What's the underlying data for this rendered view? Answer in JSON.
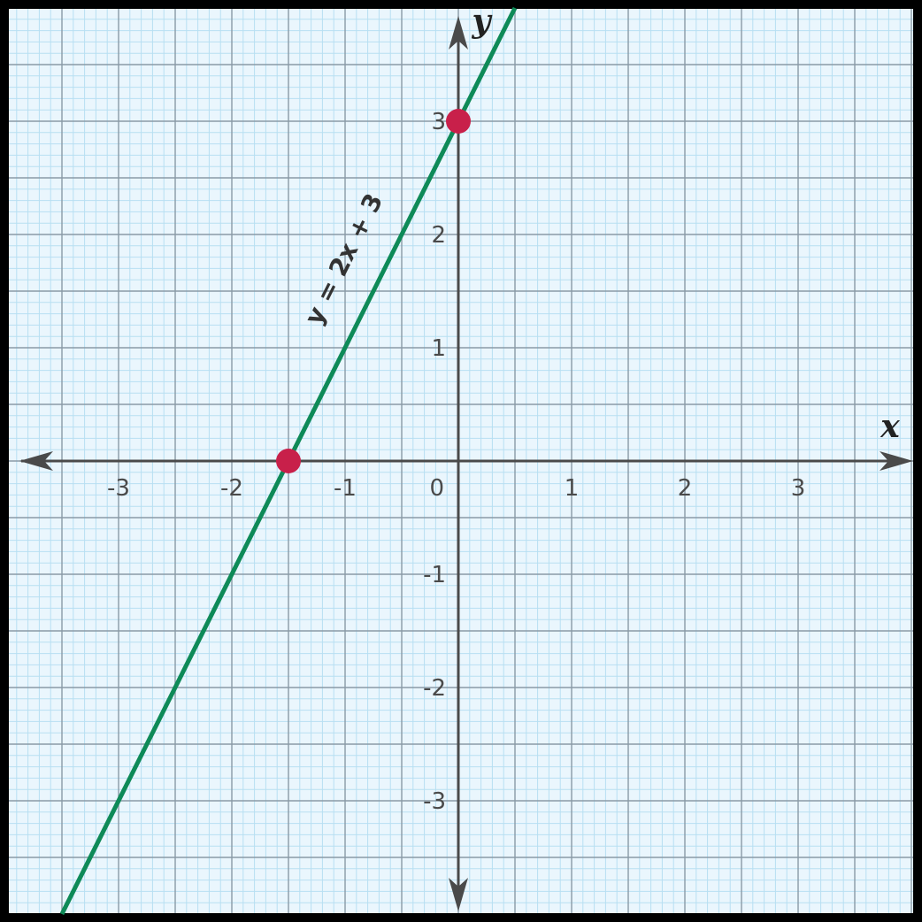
{
  "chart_data": {
    "type": "line",
    "title": "",
    "xlabel": "x",
    "ylabel": "y",
    "xlim": [
      -4,
      4
    ],
    "ylim": [
      -4,
      4
    ],
    "grid": true,
    "x_ticks": [
      {
        "value": -3,
        "label": "-3"
      },
      {
        "value": -2,
        "label": "-2"
      },
      {
        "value": -1,
        "label": "-1"
      },
      {
        "value": 1,
        "label": "1"
      },
      {
        "value": 2,
        "label": "2"
      },
      {
        "value": 3,
        "label": "3"
      }
    ],
    "y_ticks": [
      {
        "value": 3,
        "label": "3"
      },
      {
        "value": 2,
        "label": "2"
      },
      {
        "value": 1,
        "label": "1"
      },
      {
        "value": -1,
        "label": "-1"
      },
      {
        "value": -2,
        "label": "-2"
      },
      {
        "value": -3,
        "label": "-3"
      }
    ],
    "origin_label": "0",
    "series": [
      {
        "name": "y = 2x + 3",
        "equation": {
          "slope": 2,
          "intercept": 3
        },
        "x": [
          -3.5,
          0.5
        ],
        "y": [
          -4,
          4
        ],
        "color": "#0e8a58"
      }
    ],
    "points": [
      {
        "x": -1.5,
        "y": 0,
        "color": "#c8204a"
      },
      {
        "x": 0,
        "y": 3,
        "color": "#c8204a"
      }
    ],
    "colors": {
      "background": "#eaf6fd",
      "minor_grid": "#b7dff2",
      "major_grid": "#8a9aa6",
      "axis": "#4a4a4a",
      "frame": "#000000"
    }
  }
}
